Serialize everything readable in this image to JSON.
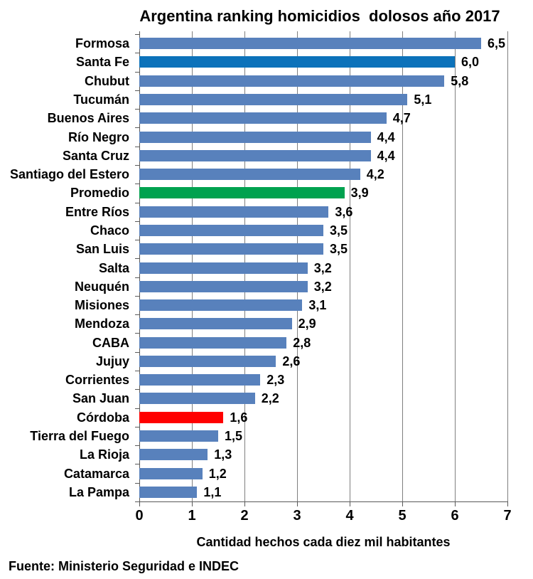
{
  "chart_data": {
    "type": "bar",
    "orientation": "horizontal",
    "title": "Argentina ranking homicidios  dolosos año 2017",
    "xlabel": "Cantidad hechos cada diez mil habitantes",
    "source": "Fuente: Ministerio Seguridad e INDEC",
    "xlim": [
      0,
      7
    ],
    "x_ticks": [
      "0",
      "1",
      "2",
      "3",
      "4",
      "5",
      "6",
      "7"
    ],
    "grid": true,
    "decimal_separator": ",",
    "legend": "none",
    "palette": {
      "default": "#5881BC",
      "highlight_blue": "#0C72BA",
      "green": "#00A24F",
      "red": "#FF0000",
      "gridline": "#7F7F7F",
      "axis": "#595959",
      "text": "#000000",
      "background": "#FFFFFF"
    },
    "items": [
      {
        "label": "Formosa",
        "value": 6.5,
        "display": "6,5"
      },
      {
        "label": "Santa Fe",
        "value": 6.0,
        "display": "6,0",
        "color": "highlight_blue"
      },
      {
        "label": "Chubut",
        "value": 5.8,
        "display": "5,8"
      },
      {
        "label": "Tucumán",
        "value": 5.1,
        "display": "5,1"
      },
      {
        "label": "Buenos Aires",
        "value": 4.7,
        "display": "4,7"
      },
      {
        "label": "Río Negro",
        "value": 4.4,
        "display": "4,4"
      },
      {
        "label": "Santa Cruz",
        "value": 4.4,
        "display": "4,4"
      },
      {
        "label": "Santiago del Estero",
        "value": 4.2,
        "display": "4,2"
      },
      {
        "label": "Promedio",
        "value": 3.9,
        "display": "3,9",
        "color": "green"
      },
      {
        "label": "Entre Ríos",
        "value": 3.6,
        "display": "3,6"
      },
      {
        "label": "Chaco",
        "value": 3.5,
        "display": "3,5"
      },
      {
        "label": "San Luis",
        "value": 3.5,
        "display": "3,5"
      },
      {
        "label": "Salta",
        "value": 3.2,
        "display": "3,2"
      },
      {
        "label": "Neuquén",
        "value": 3.2,
        "display": "3,2"
      },
      {
        "label": "Misiones",
        "value": 3.1,
        "display": "3,1"
      },
      {
        "label": "Mendoza",
        "value": 2.9,
        "display": "2,9"
      },
      {
        "label": "CABA",
        "value": 2.8,
        "display": "2,8"
      },
      {
        "label": "Jujuy",
        "value": 2.6,
        "display": "2,6"
      },
      {
        "label": "Corrientes",
        "value": 2.3,
        "display": "2,3"
      },
      {
        "label": "San Juan",
        "value": 2.2,
        "display": "2,2"
      },
      {
        "label": "Córdoba",
        "value": 1.6,
        "display": "1,6",
        "color": "red"
      },
      {
        "label": "Tierra del Fuego",
        "value": 1.5,
        "display": "1,5"
      },
      {
        "label": "La Rioja",
        "value": 1.3,
        "display": "1,3"
      },
      {
        "label": "Catamarca",
        "value": 1.2,
        "display": "1,2"
      },
      {
        "label": "La Pampa",
        "value": 1.1,
        "display": "1,1"
      }
    ]
  }
}
